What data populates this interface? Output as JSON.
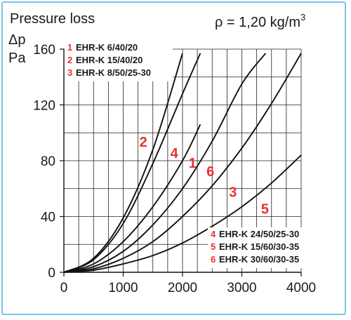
{
  "header": {
    "title": "Pressure loss",
    "density_prefix": "ρ = 1,20 kg/m",
    "density_sup": "3"
  },
  "colors": {
    "curve": "#111111",
    "label": "#e8312f",
    "grid": "#222222",
    "frame": "#7cc4e8"
  },
  "chart_data": {
    "type": "line",
    "title": "Pressure loss",
    "ylabel_symbol": "Δp",
    "ylabel_unit": "Pa",
    "xlabel": "",
    "xlim": [
      0,
      4000
    ],
    "ylim": [
      0,
      160
    ],
    "x_ticks": [
      "0",
      "1000",
      "2000",
      "3000",
      "4000"
    ],
    "y_ticks": [
      "0",
      "40",
      "80",
      "120",
      "160"
    ],
    "x_grid_step": 250,
    "y_grid_step": 20,
    "grid": true,
    "legend_position": "top-left and bottom-right",
    "series": [
      {
        "label_number": "1",
        "name": "EHR-K 6/40/20",
        "points": [
          [
            0,
            0
          ],
          [
            500,
            6
          ],
          [
            1000,
            22
          ],
          [
            1500,
            47
          ],
          [
            2000,
            80
          ],
          [
            2300,
            106
          ]
        ]
      },
      {
        "label_number": "2",
        "name": "EHR-K 15/40/20",
        "points": [
          [
            0,
            0
          ],
          [
            500,
            10
          ],
          [
            1000,
            39
          ],
          [
            1500,
            88
          ],
          [
            2000,
            157
          ]
        ]
      },
      {
        "label_number": "3",
        "name": "EHR-K 8/50/25-30",
        "points": [
          [
            0,
            0
          ],
          [
            500,
            4
          ],
          [
            1000,
            15
          ],
          [
            1500,
            34
          ],
          [
            2000,
            60
          ],
          [
            2500,
            94
          ],
          [
            3000,
            135
          ],
          [
            3400,
            157
          ]
        ]
      },
      {
        "label_number": "4",
        "name": "EHR-K 24/50/25-30",
        "points": [
          [
            0,
            0
          ],
          [
            500,
            9
          ],
          [
            1000,
            35
          ],
          [
            1500,
            78
          ],
          [
            2000,
            128
          ],
          [
            2300,
            157
          ]
        ]
      },
      {
        "label_number": "5",
        "name": "EHR-K 15/60/30-35",
        "points": [
          [
            0,
            0
          ],
          [
            500,
            1.5
          ],
          [
            1000,
            6
          ],
          [
            1500,
            12
          ],
          [
            2000,
            21
          ],
          [
            2500,
            33
          ],
          [
            3000,
            47
          ],
          [
            3500,
            64
          ],
          [
            4000,
            84
          ]
        ]
      },
      {
        "label_number": "6",
        "name": "EHR-K 30/60/30-35",
        "points": [
          [
            0,
            0
          ],
          [
            500,
            2.5
          ],
          [
            1000,
            10
          ],
          [
            1500,
            22
          ],
          [
            2000,
            40
          ],
          [
            2500,
            62
          ],
          [
            3000,
            89
          ],
          [
            3500,
            121
          ],
          [
            4000,
            157
          ]
        ]
      }
    ],
    "legend_top": [
      "1",
      "2",
      "3"
    ],
    "legend_bottom": [
      "4",
      "5",
      "6"
    ],
    "curve_labels": [
      {
        "text": "2",
        "x": 1340,
        "y": 90
      },
      {
        "text": "4",
        "x": 1860,
        "y": 82
      },
      {
        "text": "1",
        "x": 2170,
        "y": 75
      },
      {
        "text": "6",
        "x": 2470,
        "y": 69
      },
      {
        "text": "3",
        "x": 2850,
        "y": 54
      },
      {
        "text": "5",
        "x": 3390,
        "y": 42
      }
    ]
  }
}
